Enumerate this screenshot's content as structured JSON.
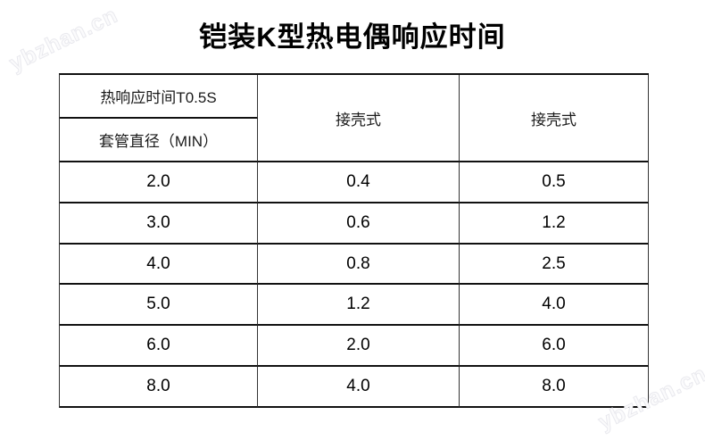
{
  "title": "铠装K型热电偶响应时间",
  "watermark": {
    "text": "ybzhan.cn",
    "color": "#ececec"
  },
  "table": {
    "header": {
      "response_time": "热响应时间T0.5S",
      "sheath_diameter": "套管直径（MIN）",
      "type_col2": "接壳式",
      "type_col3": "接壳式"
    },
    "rows": [
      [
        "2.0",
        "0.4",
        "0.5"
      ],
      [
        "3.0",
        "0.6",
        "1.2"
      ],
      [
        "4.0",
        "0.8",
        "2.5"
      ],
      [
        "5.0",
        "1.2",
        "4.0"
      ],
      [
        "6.0",
        "2.0",
        "6.0"
      ],
      [
        "8.0",
        "4.0",
        "8.0"
      ]
    ]
  },
  "colors": {
    "background": "#ffffff",
    "border_horizontal": "#111111",
    "border_vertical": "#333333",
    "title_text": "#000000",
    "body_text": "#1a1a1a"
  }
}
